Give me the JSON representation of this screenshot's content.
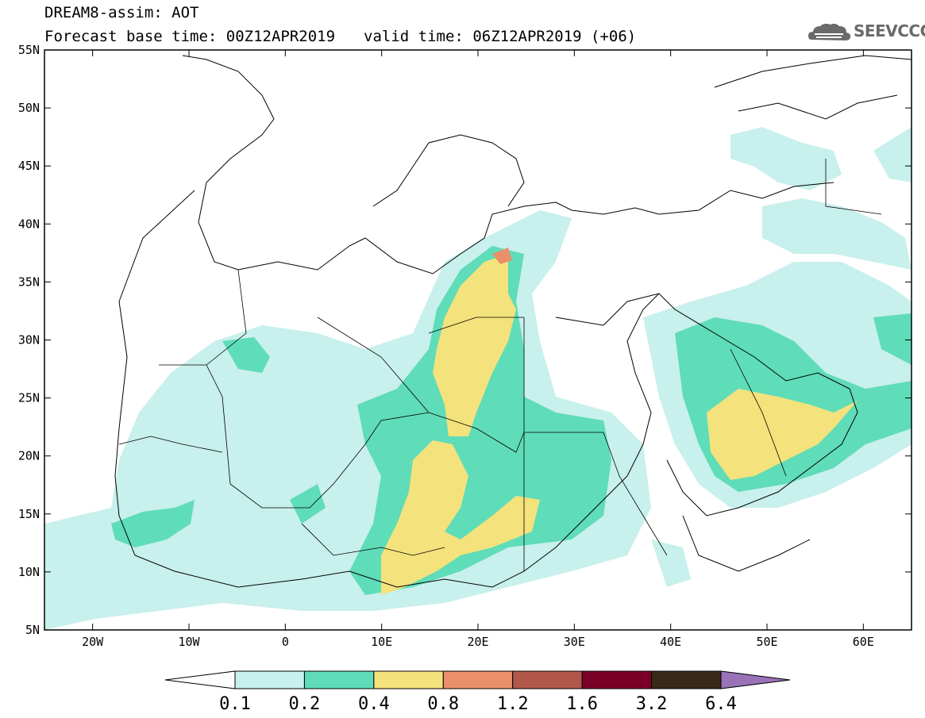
{
  "header": {
    "title": "DREAM8-assim: AOT",
    "base_time": "Forecast base time: 00Z12APR2019",
    "valid_time": "valid time: 06Z12APR2019 (+06)"
  },
  "logo": {
    "text": "SEEVCCC",
    "icon": "cloud-logo-icon"
  },
  "map": {
    "lat_labels": [
      "55N",
      "50N",
      "45N",
      "40N",
      "35N",
      "30N",
      "25N",
      "20N",
      "15N",
      "10N",
      "5N"
    ],
    "lon_labels": [
      "20W",
      "10W",
      "0",
      "10E",
      "20E",
      "30E",
      "40E",
      "50E",
      "60E"
    ],
    "lat_range": [
      5,
      55
    ],
    "lon_range": [
      -25,
      65
    ],
    "field": "Aerosol optical thickness"
  },
  "colorbar": {
    "labels": [
      "0.1",
      "0.2",
      "0.4",
      "0.8",
      "1.2",
      "1.6",
      "3.2",
      "6.4"
    ],
    "colors": [
      "#c8f0ec",
      "#5fdcb8",
      "#f4e27c",
      "#e9906a",
      "#b2584a",
      "#7a0028",
      "#3a2818",
      "#9a72b8"
    ],
    "below_color": "#ffffff"
  }
}
